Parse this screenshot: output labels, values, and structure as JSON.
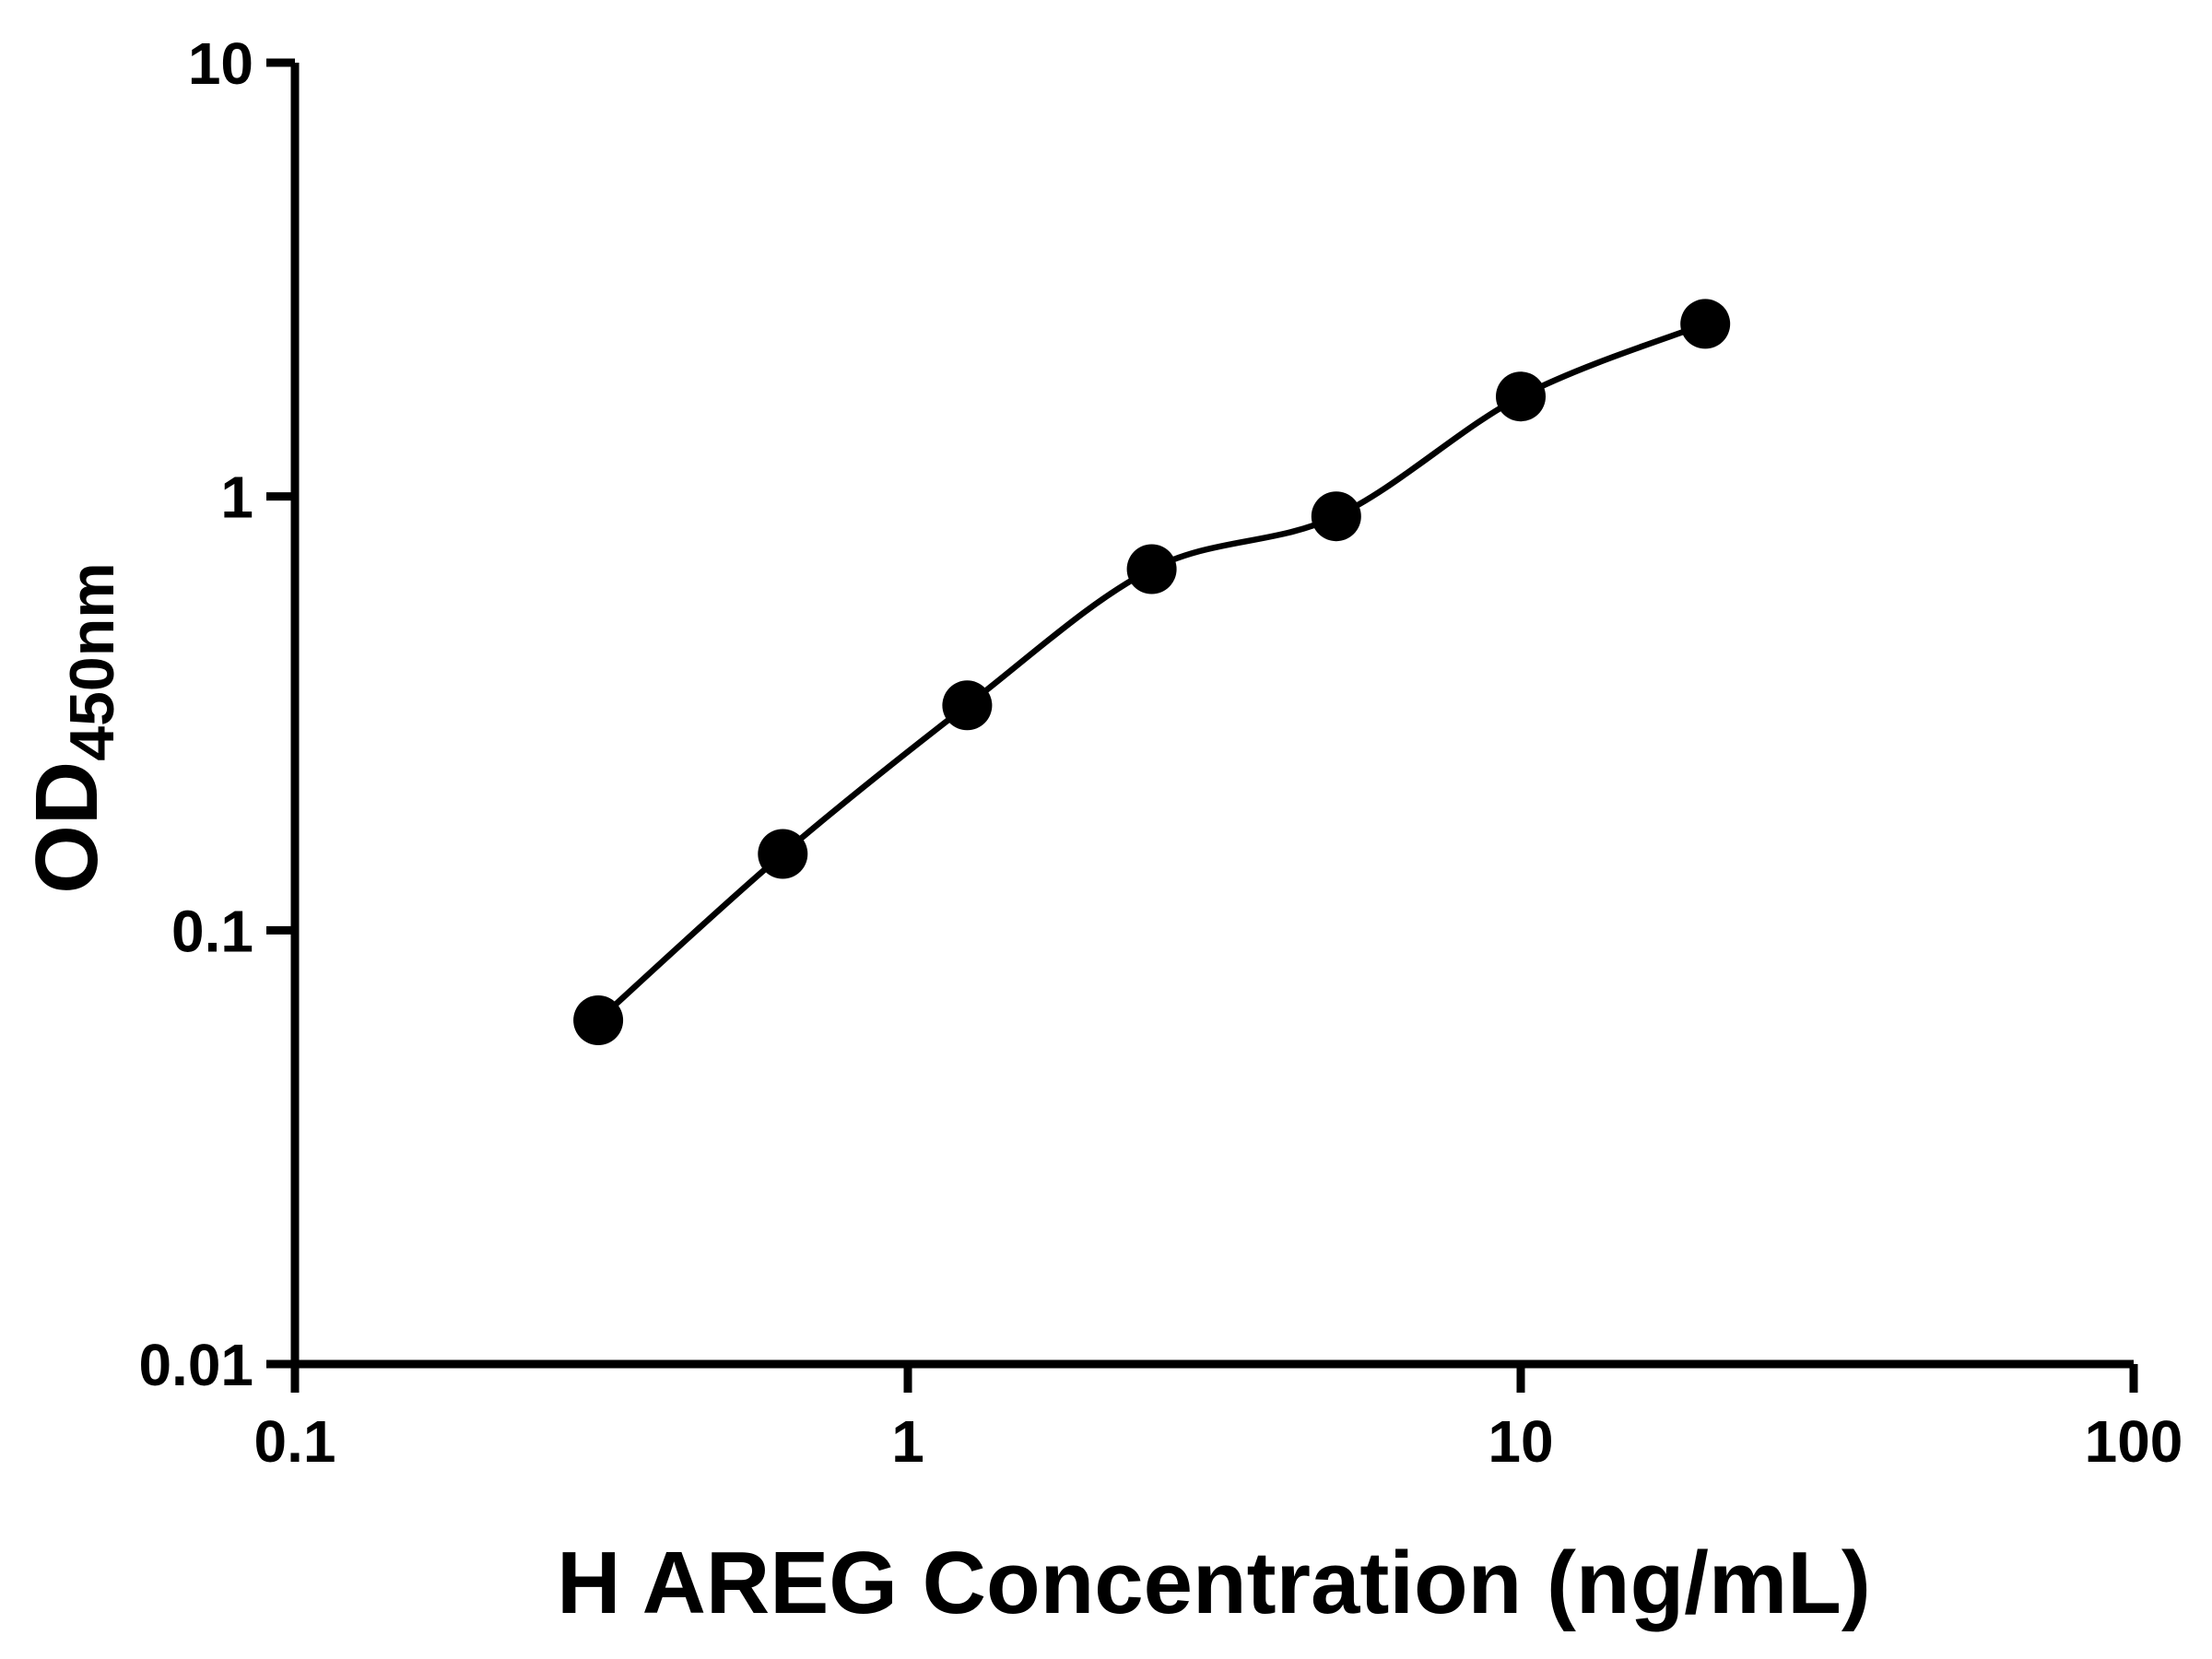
{
  "chart_data": {
    "type": "scatter",
    "title": "",
    "xlabel": "H AREG Concentration (ng/mL)",
    "ylabel_main": "OD",
    "ylabel_sub": "450nm",
    "x": [
      0.3125,
      0.625,
      1.25,
      2.5,
      5,
      10,
      20
    ],
    "y": [
      0.062,
      0.15,
      0.33,
      0.68,
      0.9,
      1.7,
      2.5
    ],
    "x_scale": "log",
    "y_scale": "log",
    "xlim": [
      0.1,
      100
    ],
    "ylim": [
      0.01,
      10
    ],
    "x_ticks": [
      {
        "value": 0.1,
        "label": "0.1"
      },
      {
        "value": 1,
        "label": "1"
      },
      {
        "value": 10,
        "label": "10"
      },
      {
        "value": 100,
        "label": "100"
      }
    ],
    "y_ticks": [
      {
        "value": 0.01,
        "label": "0.01"
      },
      {
        "value": 0.1,
        "label": "0.1"
      },
      {
        "value": 1,
        "label": "1"
      },
      {
        "value": 10,
        "label": "10"
      }
    ],
    "grid": "off",
    "legend": "none",
    "fit": "smooth curve through points (4PL standard curve)",
    "axis_color": "#000000",
    "line_color": "#000000",
    "marker_color": "#000000",
    "background": "#ffffff"
  }
}
